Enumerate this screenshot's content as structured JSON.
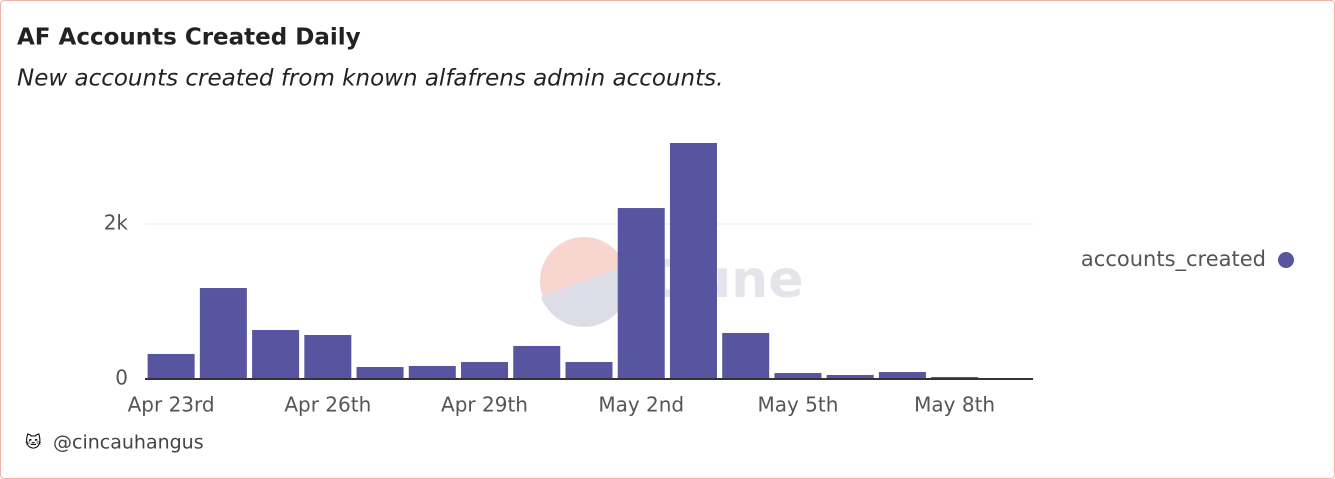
{
  "chart_data": {
    "type": "bar",
    "title": "AF Accounts Created Daily",
    "subtitle": "New accounts created from known alfafrens admin accounts.",
    "categories": [
      "Apr 23rd",
      null,
      null,
      "Apr 26th",
      null,
      null,
      "Apr 29th",
      null,
      null,
      "May 2nd",
      null,
      null,
      "May 5th",
      null,
      null,
      "May 8th",
      null
    ],
    "series": [
      {
        "name": "accounts_created",
        "color": "#5755a0",
        "values": [
          323,
          1174,
          632,
          568,
          155,
          168,
          219,
          426,
          219,
          2206,
          3045,
          594,
          77,
          52,
          90,
          26,
          13
        ]
      }
    ],
    "ylim": [
      0,
      3100
    ],
    "yticks": [
      0,
      {
        "value": 2000,
        "label": "2k"
      }
    ],
    "grid": true,
    "legend": "right",
    "watermark": "Dune",
    "author": "@cincauhangus"
  }
}
